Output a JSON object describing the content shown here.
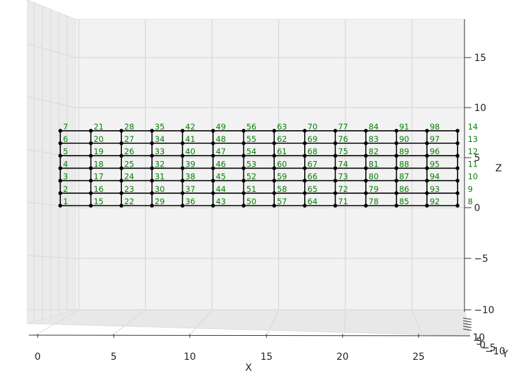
{
  "chart_data": {
    "type": "scatter",
    "projection": "3d",
    "title": "",
    "xlabel": "X",
    "ylabel": "Y",
    "zlabel": "Z",
    "x_ticks": [
      "0",
      "5",
      "10",
      "15",
      "20",
      "25"
    ],
    "z_ticks": [
      "15",
      "10",
      "5",
      "0",
      "−5",
      "−10"
    ],
    "y_tick_labels": [
      "10",
      "5",
      "0",
      "−5",
      "−10"
    ],
    "x_values": [
      0,
      2,
      4,
      6,
      8,
      10,
      12,
      14,
      16,
      18,
      20,
      22,
      24,
      26
    ],
    "z_values": [
      0,
      1,
      2,
      3,
      4,
      5,
      6
    ],
    "y_value": 0,
    "grid": true,
    "node_label_color": "#008000",
    "node_color": "#000000",
    "nodes": [
      {
        "id": 1,
        "x": 0,
        "z": 0
      },
      {
        "id": 2,
        "x": 0,
        "z": 1
      },
      {
        "id": 3,
        "x": 0,
        "z": 2
      },
      {
        "id": 4,
        "x": 0,
        "z": 3
      },
      {
        "id": 5,
        "x": 0,
        "z": 4
      },
      {
        "id": 6,
        "x": 0,
        "z": 5
      },
      {
        "id": 7,
        "x": 0,
        "z": 6
      },
      {
        "id": 8,
        "x": 26,
        "z": 0
      },
      {
        "id": 9,
        "x": 26,
        "z": 1
      },
      {
        "id": 10,
        "x": 26,
        "z": 2
      },
      {
        "id": 11,
        "x": 26,
        "z": 3
      },
      {
        "id": 12,
        "x": 26,
        "z": 4
      },
      {
        "id": 13,
        "x": 26,
        "z": 5
      },
      {
        "id": 14,
        "x": 26,
        "z": 6
      },
      {
        "id": 15,
        "x": 2,
        "z": 0
      },
      {
        "id": 16,
        "x": 2,
        "z": 1
      },
      {
        "id": 17,
        "x": 2,
        "z": 2
      },
      {
        "id": 18,
        "x": 2,
        "z": 3
      },
      {
        "id": 19,
        "x": 2,
        "z": 4
      },
      {
        "id": 20,
        "x": 2,
        "z": 5
      },
      {
        "id": 21,
        "x": 2,
        "z": 6
      },
      {
        "id": 22,
        "x": 4,
        "z": 0
      },
      {
        "id": 23,
        "x": 4,
        "z": 1
      },
      {
        "id": 24,
        "x": 4,
        "z": 2
      },
      {
        "id": 25,
        "x": 4,
        "z": 3
      },
      {
        "id": 26,
        "x": 4,
        "z": 4
      },
      {
        "id": 27,
        "x": 4,
        "z": 5
      },
      {
        "id": 28,
        "x": 4,
        "z": 6
      },
      {
        "id": 29,
        "x": 6,
        "z": 0
      },
      {
        "id": 30,
        "x": 6,
        "z": 1
      },
      {
        "id": 31,
        "x": 6,
        "z": 2
      },
      {
        "id": 32,
        "x": 6,
        "z": 3
      },
      {
        "id": 33,
        "x": 6,
        "z": 4
      },
      {
        "id": 34,
        "x": 6,
        "z": 5
      },
      {
        "id": 35,
        "x": 6,
        "z": 6
      },
      {
        "id": 36,
        "x": 8,
        "z": 0
      },
      {
        "id": 37,
        "x": 8,
        "z": 1
      },
      {
        "id": 38,
        "x": 8,
        "z": 2
      },
      {
        "id": 39,
        "x": 8,
        "z": 3
      },
      {
        "id": 40,
        "x": 8,
        "z": 4
      },
      {
        "id": 41,
        "x": 8,
        "z": 5
      },
      {
        "id": 42,
        "x": 8,
        "z": 6
      },
      {
        "id": 43,
        "x": 10,
        "z": 0
      },
      {
        "id": 44,
        "x": 10,
        "z": 1
      },
      {
        "id": 45,
        "x": 10,
        "z": 2
      },
      {
        "id": 46,
        "x": 10,
        "z": 3
      },
      {
        "id": 47,
        "x": 10,
        "z": 4
      },
      {
        "id": 48,
        "x": 10,
        "z": 5
      },
      {
        "id": 49,
        "x": 10,
        "z": 6
      },
      {
        "id": 50,
        "x": 12,
        "z": 0
      },
      {
        "id": 51,
        "x": 12,
        "z": 1
      },
      {
        "id": 52,
        "x": 12,
        "z": 2
      },
      {
        "id": 53,
        "x": 12,
        "z": 3
      },
      {
        "id": 54,
        "x": 12,
        "z": 4
      },
      {
        "id": 55,
        "x": 12,
        "z": 5
      },
      {
        "id": 56,
        "x": 12,
        "z": 6
      },
      {
        "id": 57,
        "x": 14,
        "z": 0
      },
      {
        "id": 58,
        "x": 14,
        "z": 1
      },
      {
        "id": 59,
        "x": 14,
        "z": 2
      },
      {
        "id": 60,
        "x": 14,
        "z": 3
      },
      {
        "id": 61,
        "x": 14,
        "z": 4
      },
      {
        "id": 62,
        "x": 14,
        "z": 5
      },
      {
        "id": 63,
        "x": 14,
        "z": 6
      },
      {
        "id": 64,
        "x": 16,
        "z": 0
      },
      {
        "id": 65,
        "x": 16,
        "z": 1
      },
      {
        "id": 66,
        "x": 16,
        "z": 2
      },
      {
        "id": 67,
        "x": 16,
        "z": 3
      },
      {
        "id": 68,
        "x": 16,
        "z": 4
      },
      {
        "id": 69,
        "x": 16,
        "z": 5
      },
      {
        "id": 70,
        "x": 16,
        "z": 6
      },
      {
        "id": 71,
        "x": 18,
        "z": 0
      },
      {
        "id": 72,
        "x": 18,
        "z": 1
      },
      {
        "id": 73,
        "x": 18,
        "z": 2
      },
      {
        "id": 74,
        "x": 18,
        "z": 3
      },
      {
        "id": 75,
        "x": 18,
        "z": 4
      },
      {
        "id": 76,
        "x": 18,
        "z": 5
      },
      {
        "id": 77,
        "x": 18,
        "z": 6
      },
      {
        "id": 78,
        "x": 20,
        "z": 0
      },
      {
        "id": 79,
        "x": 20,
        "z": 1
      },
      {
        "id": 80,
        "x": 20,
        "z": 2
      },
      {
        "id": 81,
        "x": 20,
        "z": 3
      },
      {
        "id": 82,
        "x": 20,
        "z": 4
      },
      {
        "id": 83,
        "x": 20,
        "z": 5
      },
      {
        "id": 84,
        "x": 20,
        "z": 6
      },
      {
        "id": 85,
        "x": 22,
        "z": 0
      },
      {
        "id": 86,
        "x": 22,
        "z": 1
      },
      {
        "id": 87,
        "x": 22,
        "z": 2
      },
      {
        "id": 88,
        "x": 22,
        "z": 3
      },
      {
        "id": 89,
        "x": 22,
        "z": 4
      },
      {
        "id": 90,
        "x": 22,
        "z": 5
      },
      {
        "id": 91,
        "x": 22,
        "z": 6
      },
      {
        "id": 92,
        "x": 24,
        "z": 0
      },
      {
        "id": 93,
        "x": 24,
        "z": 1
      },
      {
        "id": 94,
        "x": 24,
        "z": 2
      },
      {
        "id": 95,
        "x": 24,
        "z": 3
      },
      {
        "id": 96,
        "x": 24,
        "z": 4
      },
      {
        "id": 97,
        "x": 24,
        "z": 5
      },
      {
        "id": 98,
        "x": 24,
        "z": 6
      }
    ]
  }
}
